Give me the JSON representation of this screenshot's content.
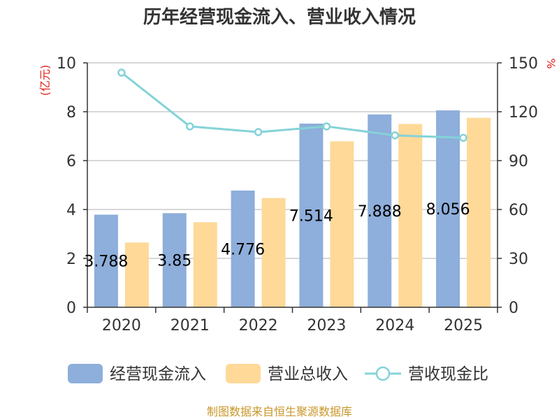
{
  "chart_data": {
    "type": "bar",
    "title": "历年经营现金流入、营业收入情况",
    "categories": [
      "2020",
      "2021",
      "2022",
      "2023",
      "2024",
      "2025"
    ],
    "y_left": {
      "unit_label": "(亿元)",
      "range": [
        0,
        10
      ],
      "ticks": [
        "0",
        "2",
        "4",
        "6",
        "8",
        "10"
      ]
    },
    "y_right": {
      "unit_label": "%",
      "range": [
        0,
        150
      ],
      "ticks": [
        "0",
        "30",
        "60",
        "90",
        "120",
        "150"
      ]
    },
    "grid": true,
    "legend_position": "bottom",
    "series": [
      {
        "name": "经营现金流入",
        "type": "bar",
        "axis": "left",
        "color": "#8eaedb",
        "values": [
          3.788,
          3.85,
          4.776,
          7.514,
          7.888,
          8.056
        ],
        "labels": [
          "3.788",
          "3.85",
          "4.776",
          "7.514",
          "7.888",
          "8.056"
        ]
      },
      {
        "name": "营业总收入",
        "type": "bar",
        "axis": "left",
        "color": "#fed998",
        "values": [
          2.65,
          3.48,
          4.47,
          6.79,
          7.5,
          7.75
        ]
      },
      {
        "name": "营收现金比",
        "type": "line",
        "axis": "right",
        "color": "#84d3d8",
        "values": [
          144,
          111,
          107.5,
          111,
          105.5,
          104
        ]
      }
    ]
  },
  "source": "制图数据来自恒生聚源数据库"
}
